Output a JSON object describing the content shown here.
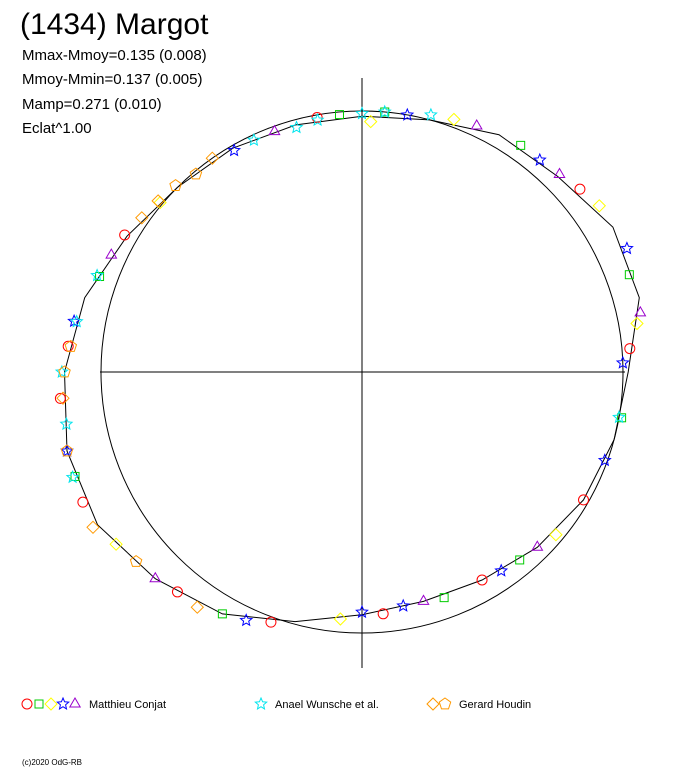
{
  "chart_data": {
    "type": "polar",
    "title": "(1434) Margot",
    "stats": [
      "Mmax-Mmoy=0.135 (0.008)",
      "Mmoy-Mmin=0.137 (0.005)",
      "Mamp=0.271 (0.010)",
      "Eclat^1.00"
    ],
    "footer": "(c)2020 OdG-RB",
    "reference_radius": 1,
    "model": {
      "color": "#000000",
      "x": [
        0,
        15,
        30,
        45,
        60,
        75,
        90,
        105,
        120,
        135,
        150,
        165,
        180,
        195,
        210,
        225,
        240,
        255,
        270,
        285,
        300,
        315,
        330,
        345
      ],
      "values": [
        1.02,
        1.1,
        1.11,
        1.06,
        1.05,
        1.0,
        0.98,
        0.98,
        0.99,
        1.0,
        1.04,
        1.1,
        1.14,
        1.17,
        1.17,
        1.12,
        1.07,
        0.99,
        0.93,
        0.91,
        0.92,
        0.95,
        0.98,
        1.0
      ]
    },
    "observers": [
      {
        "name": "Matthieu Conjat",
        "series": [
          {
            "color": "#ff0000",
            "marker": "circle",
            "x": [
              5,
              40,
              100,
              150,
              175,
              185,
              205,
              230,
              250,
              275,
              300,
              330
            ],
            "values": [
              1.03,
              1.09,
              0.99,
              1.05,
              1.13,
              1.16,
              1.18,
              1.1,
              1.02,
              0.93,
              0.92,
              0.98
            ]
          },
          {
            "color": "#00cc00",
            "marker": "square",
            "x": [
              20,
              55,
              85,
              95,
              160,
              200,
              240,
              290,
              310,
              350
            ],
            "values": [
              1.09,
              1.06,
              1.0,
              0.99,
              1.07,
              1.17,
              1.07,
              0.92,
              0.94,
              1.01
            ]
          },
          {
            "color": "#ffff00",
            "marker": "diamond",
            "x": [
              10,
              35,
              70,
              88,
              140,
              215,
              265,
              320
            ],
            "values": [
              1.07,
              1.11,
              1.03,
              0.96,
              1.01,
              1.15,
              0.95,
              0.97
            ]
          },
          {
            "color": "#0000ff",
            "marker": "star",
            "x": [
              2,
              25,
              50,
              80,
              120,
              170,
              195,
              245,
              270,
              280,
              305,
              340
            ],
            "values": [
              1.0,
              1.12,
              1.06,
              1.0,
              0.98,
              1.12,
              1.17,
              1.05,
              0.92,
              0.91,
              0.93,
              0.99
            ]
          },
          {
            "color": "#9900cc",
            "marker": "triangle",
            "x": [
              12,
              45,
              65,
              110,
              155,
              225,
              285,
              315
            ],
            "values": [
              1.09,
              1.07,
              1.04,
              0.98,
              1.06,
              1.12,
              0.91,
              0.95
            ]
          }
        ]
      },
      {
        "name": "Anael Wunsche et al.",
        "series": [
          {
            "color": "#00e5ee",
            "marker": "star",
            "x": [
              90,
              100,
              105,
              115,
              160,
              170,
              190,
              200,
              75,
              85,
              350,
              180
            ],
            "values": [
              0.99,
              0.98,
              0.97,
              0.98,
              1.08,
              1.11,
              1.15,
              1.18,
              1.02,
              1.0,
              1.0,
              1.15
            ]
          }
        ]
      },
      {
        "name": "Gerard Houdin",
        "series": [
          {
            "color": "#ff9900",
            "marker": "diamond",
            "x": [
              125,
              145,
              185,
              210,
              235,
              140
            ],
            "values": [
              1.0,
              1.03,
              1.15,
              1.19,
              1.1,
              1.02
            ]
          },
          {
            "color": "#ff9900",
            "marker": "pentagon",
            "x": [
              135,
              175,
              195,
              220,
              180,
              130
            ],
            "values": [
              1.01,
              1.12,
              1.17,
              1.13,
              1.14,
              0.99
            ]
          }
        ]
      }
    ]
  }
}
